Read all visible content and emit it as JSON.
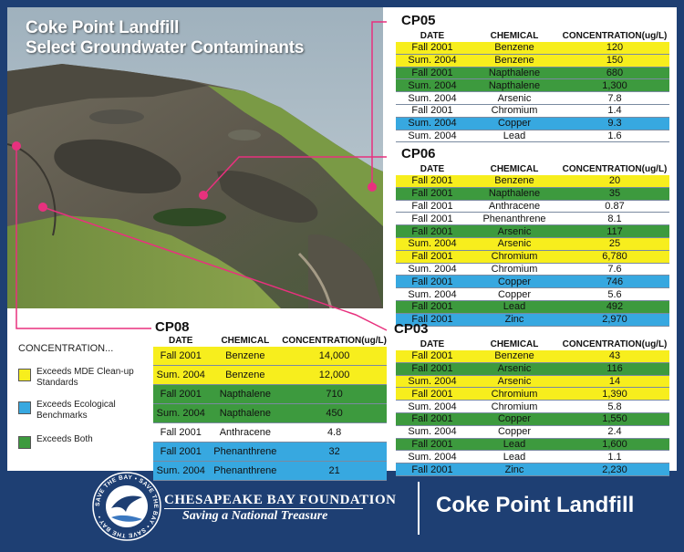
{
  "photo": {
    "title_line1": "Coke Point Landfill",
    "title_line2": "Select Groundwater Contaminants"
  },
  "headers": {
    "date": "DATE",
    "chemical": "CHEMICAL",
    "concentration": "CONCENTRATION(ug/L)"
  },
  "colors": {
    "mde": "#f7ee1d",
    "eco": "#37a8e0",
    "both": "#3d9a3e",
    "none": "#ffffff",
    "marker": "#e8317e",
    "navy": "#1e3f73"
  },
  "tables": {
    "cp05": {
      "name": "CP05",
      "rows": [
        {
          "date": "Fall 2001",
          "chemical": "Benzene",
          "value": "120",
          "category": "mde"
        },
        {
          "date": "Sum. 2004",
          "chemical": "Benzene",
          "value": "150",
          "category": "mde"
        },
        {
          "date": "Fall 2001",
          "chemical": "Napthalene",
          "value": "680",
          "category": "both"
        },
        {
          "date": "Sum. 2004",
          "chemical": "Napthalene",
          "value": "1,300",
          "category": "both"
        },
        {
          "date": "Sum. 2004",
          "chemical": "Arsenic",
          "value": "7.8",
          "category": "none"
        },
        {
          "date": "Fall 2001",
          "chemical": "Chromium",
          "value": "1.4",
          "category": "none"
        },
        {
          "date": "Sum. 2004",
          "chemical": "Copper",
          "value": "9.3",
          "category": "eco"
        },
        {
          "date": "Sum. 2004",
          "chemical": "Lead",
          "value": "1.6",
          "category": "none"
        }
      ]
    },
    "cp06": {
      "name": "CP06",
      "rows": [
        {
          "date": "Fall 2001",
          "chemical": "Benzene",
          "value": "20",
          "category": "mde"
        },
        {
          "date": "Fall 2001",
          "chemical": "Napthalene",
          "value": "35",
          "category": "both"
        },
        {
          "date": "Fall 2001",
          "chemical": "Anthracene",
          "value": "0.87",
          "category": "none"
        },
        {
          "date": "Fall 2001",
          "chemical": "Phenanthrene",
          "value": "8.1",
          "category": "none"
        },
        {
          "date": "Fall 2001",
          "chemical": "Arsenic",
          "value": "117",
          "category": "both"
        },
        {
          "date": "Sum. 2004",
          "chemical": "Arsenic",
          "value": "25",
          "category": "mde"
        },
        {
          "date": "Fall 2001",
          "chemical": "Chromium",
          "value": "6,780",
          "category": "mde"
        },
        {
          "date": "Sum. 2004",
          "chemical": "Chromium",
          "value": "7.6",
          "category": "none"
        },
        {
          "date": "Fall 2001",
          "chemical": "Copper",
          "value": "746",
          "category": "eco"
        },
        {
          "date": "Sum. 2004",
          "chemical": "Copper",
          "value": "5.6",
          "category": "none"
        },
        {
          "date": "Fall 2001",
          "chemical": "Lead",
          "value": "492",
          "category": "both"
        },
        {
          "date": "Fall 2001",
          "chemical": "Zinc",
          "value": "2,970",
          "category": "eco"
        }
      ]
    },
    "cp08": {
      "name": "CP08",
      "rows": [
        {
          "date": "Fall 2001",
          "chemical": "Benzene",
          "value": "14,000",
          "category": "mde"
        },
        {
          "date": "Sum. 2004",
          "chemical": "Benzene",
          "value": "12,000",
          "category": "mde"
        },
        {
          "date": "Fall 2001",
          "chemical": "Napthalene",
          "value": "710",
          "category": "both"
        },
        {
          "date": "Sum. 2004",
          "chemical": "Napthalene",
          "value": "450",
          "category": "both"
        },
        {
          "date": "Fall 2001",
          "chemical": "Anthracene",
          "value": "4.8",
          "category": "none"
        },
        {
          "date": "Fall 2001",
          "chemical": "Phenanthrene",
          "value": "32",
          "category": "eco"
        },
        {
          "date": "Sum. 2004",
          "chemical": "Phenanthrene",
          "value": "21",
          "category": "eco"
        }
      ]
    },
    "cp03": {
      "name": "CP03",
      "rows": [
        {
          "date": "Fall 2001",
          "chemical": "Benzene",
          "value": "43",
          "category": "mde"
        },
        {
          "date": "Fall 2001",
          "chemical": "Arsenic",
          "value": "116",
          "category": "both"
        },
        {
          "date": "Sum. 2004",
          "chemical": "Arsenic",
          "value": "14",
          "category": "mde"
        },
        {
          "date": "Fall 2001",
          "chemical": "Chromium",
          "value": "1,390",
          "category": "mde"
        },
        {
          "date": "Sum. 2004",
          "chemical": "Chromium",
          "value": "5.8",
          "category": "none"
        },
        {
          "date": "Fall 2001",
          "chemical": "Copper",
          "value": "1,550",
          "category": "both"
        },
        {
          "date": "Sum. 2004",
          "chemical": "Copper",
          "value": "2.4",
          "category": "none"
        },
        {
          "date": "Fall 2001",
          "chemical": "Lead",
          "value": "1,600",
          "category": "both"
        },
        {
          "date": "Sum. 2004",
          "chemical": "Lead",
          "value": "1.1",
          "category": "none"
        },
        {
          "date": "Fall 2001",
          "chemical": "Zinc",
          "value": "2,230",
          "category": "eco"
        }
      ]
    }
  },
  "legend": {
    "title": "CONCENTRATION...",
    "items": [
      {
        "label": "Exceeds MDE Clean-up Standards",
        "category": "mde"
      },
      {
        "label": "Exceeds Ecological Benchmarks",
        "category": "eco"
      },
      {
        "label": "Exceeds Both",
        "category": "both"
      }
    ]
  },
  "footer": {
    "org_name": "CHESAPEAKE BAY FOUNDATION",
    "tagline": "Saving a National Treasure",
    "title": "Coke Point Landfill",
    "seal_text": "SAVE THE BAY • SAVE THE BAY • SAVE THE BAY •"
  }
}
